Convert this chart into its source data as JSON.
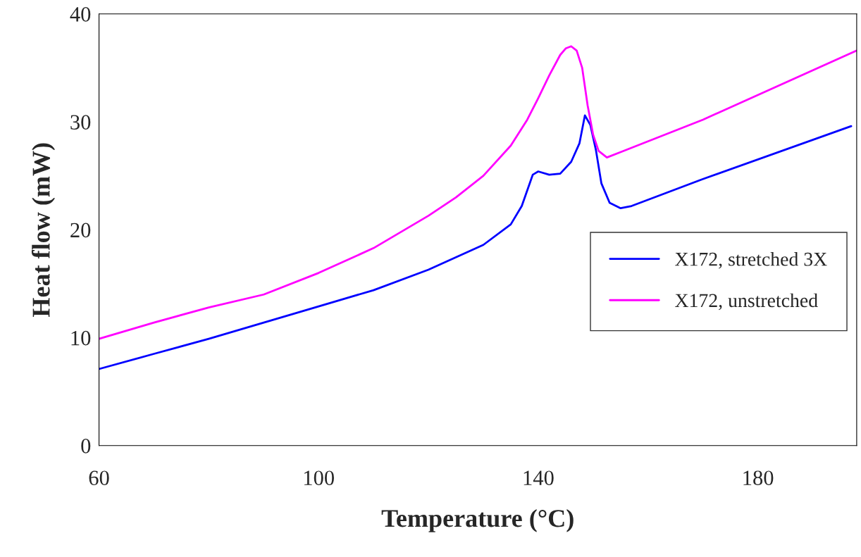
{
  "chart_data": {
    "type": "line",
    "xlabel": "Temperature (°C)",
    "ylabel": "Heat flow (mW)",
    "xlim": [
      60,
      198
    ],
    "xticks": [
      60,
      100,
      140,
      180
    ],
    "ylim": [
      0,
      40
    ],
    "yticks": [
      0,
      10,
      20,
      30,
      40
    ],
    "grid": false,
    "legend": "right",
    "series": [
      {
        "name": "X172, stretched 3X",
        "color": "#0000ff",
        "x": [
          60,
          70,
          80,
          90,
          100,
          110,
          120,
          130,
          135,
          137,
          139,
          140,
          142,
          144,
          146,
          147.5,
          148.5,
          149.5,
          150.5,
          151.5,
          153,
          155,
          157,
          170,
          197
        ],
        "values": [
          7.1,
          8.5,
          9.9,
          11.4,
          12.9,
          14.4,
          16.3,
          18.6,
          20.5,
          22.2,
          25.1,
          25.4,
          25.1,
          25.2,
          26.3,
          28,
          30.6,
          29.7,
          27.4,
          24.3,
          22.5,
          22,
          22.2,
          24.7,
          29.6
        ]
      },
      {
        "name": "X172, unstretched",
        "color": "#ff00ff",
        "x": [
          60,
          70,
          80,
          90,
          100,
          110,
          120,
          125,
          130,
          135,
          138,
          140,
          142,
          144,
          145,
          146,
          147,
          148,
          149,
          150,
          151,
          152.5,
          155,
          170,
          198
        ],
        "values": [
          9.9,
          11.4,
          12.8,
          14.0,
          16.0,
          18.3,
          21.3,
          23.0,
          25.0,
          27.8,
          30.2,
          32.2,
          34.3,
          36.2,
          36.8,
          37.0,
          36.6,
          35.0,
          31.5,
          28.8,
          27.3,
          26.7,
          27.2,
          30.2,
          36.6
        ]
      }
    ]
  }
}
